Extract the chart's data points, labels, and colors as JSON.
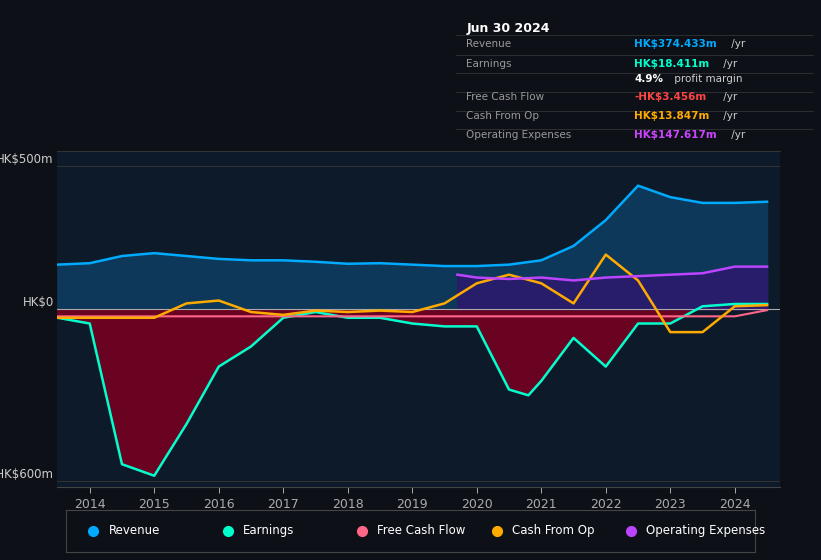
{
  "bg_color": "#0d1117",
  "plot_bg_color": "#0d1a2a",
  "title": "Jun 30 2024",
  "ylabel_500": "HK$500m",
  "ylabel_0": "HK$0",
  "ylabel_neg600": "-HK$600m",
  "ylim": [
    -620,
    550
  ],
  "xlim_years": [
    2013.5,
    2024.7
  ],
  "x_ticks": [
    2014,
    2015,
    2016,
    2017,
    2018,
    2019,
    2020,
    2021,
    2022,
    2023,
    2024
  ],
  "revenue_color": "#00aaff",
  "earnings_color": "#00ffcc",
  "fcf_color": "#ff6688",
  "cashop_color": "#ffaa00",
  "opex_color": "#bb44ff",
  "revenue_fill": "#0d3a5c",
  "earnings_fill": "#7a0020",
  "opex_fill": "#2a1a6e",
  "revenue": {
    "x": [
      2013.5,
      2014,
      2014.5,
      2015,
      2015.5,
      2016,
      2016.5,
      2017,
      2017.5,
      2018,
      2018.5,
      2019,
      2019.5,
      2020,
      2020.5,
      2021,
      2021.5,
      2022,
      2022.5,
      2023,
      2023.5,
      2024,
      2024.5
    ],
    "y": [
      155,
      160,
      185,
      195,
      185,
      175,
      170,
      170,
      165,
      158,
      160,
      155,
      150,
      150,
      155,
      170,
      220,
      310,
      430,
      390,
      370,
      370,
      374
    ]
  },
  "earnings": {
    "x": [
      2013.5,
      2014,
      2014.5,
      2015,
      2015.5,
      2016,
      2016.5,
      2017,
      2017.5,
      2018,
      2018.5,
      2019,
      2019.5,
      2020,
      2020.5,
      2020.8,
      2021,
      2021.5,
      2022,
      2022.5,
      2023,
      2023.5,
      2024,
      2024.5
    ],
    "y": [
      -30,
      -50,
      -540,
      -580,
      -400,
      -200,
      -130,
      -30,
      -10,
      -30,
      -30,
      -50,
      -60,
      -60,
      -280,
      -300,
      -250,
      -100,
      -200,
      -50,
      -50,
      10,
      18,
      18
    ]
  },
  "fcf": {
    "x": [
      2013.5,
      2014,
      2014.5,
      2015,
      2015.5,
      2016,
      2016.5,
      2017,
      2017.5,
      2018,
      2018.5,
      2019,
      2019.5,
      2020,
      2020.5,
      2021,
      2021.5,
      2022,
      2022.5,
      2023,
      2023.5,
      2024,
      2024.5
    ],
    "y": [
      -25,
      -25,
      -25,
      -25,
      -25,
      -25,
      -25,
      -25,
      -25,
      -25,
      -25,
      -25,
      -25,
      -25,
      -25,
      -25,
      -25,
      -25,
      -25,
      -25,
      -25,
      -25,
      -3.5
    ]
  },
  "cashop": {
    "x": [
      2013.5,
      2014,
      2014.5,
      2015,
      2015.5,
      2016,
      2016.5,
      2017,
      2017.5,
      2018,
      2018.5,
      2019,
      2019.5,
      2020,
      2020.5,
      2021,
      2021.5,
      2022,
      2022.5,
      2023,
      2023.5,
      2024,
      2024.5
    ],
    "y": [
      -30,
      -30,
      -30,
      -30,
      20,
      30,
      -10,
      -20,
      -5,
      -10,
      -5,
      -10,
      20,
      90,
      120,
      90,
      20,
      190,
      100,
      -80,
      -80,
      10,
      14
    ]
  },
  "opex": {
    "x": [
      2019.7,
      2020,
      2020.5,
      2021,
      2021.5,
      2022,
      2022.5,
      2023,
      2023.5,
      2024,
      2024.5
    ],
    "y": [
      120,
      110,
      105,
      110,
      100,
      110,
      115,
      120,
      125,
      148,
      148
    ]
  },
  "info_rows": [
    {
      "label": "Revenue",
      "val": "HK$374.433m",
      "val_color": "#00aaff",
      "suffix": " /yr"
    },
    {
      "label": "Earnings",
      "val": "HK$18.411m",
      "val_color": "#00ffcc",
      "suffix": " /yr"
    },
    {
      "label": "",
      "val": "4.9%",
      "val_color": "#ffffff",
      "suffix": " profit margin"
    },
    {
      "label": "Free Cash Flow",
      "val": "-HK$3.456m",
      "val_color": "#ff4444",
      "suffix": " /yr"
    },
    {
      "label": "Cash From Op",
      "val": "HK$13.847m",
      "val_color": "#ffaa00",
      "suffix": " /yr"
    },
    {
      "label": "Operating Expenses",
      "val": "HK$147.617m",
      "val_color": "#cc44ff",
      "suffix": " /yr"
    }
  ],
  "legend": [
    {
      "label": "Revenue",
      "color": "#00aaff"
    },
    {
      "label": "Earnings",
      "color": "#00ffcc"
    },
    {
      "label": "Free Cash Flow",
      "color": "#ff6688"
    },
    {
      "label": "Cash From Op",
      "color": "#ffaa00"
    },
    {
      "label": "Operating Expenses",
      "color": "#bb44ff"
    }
  ]
}
